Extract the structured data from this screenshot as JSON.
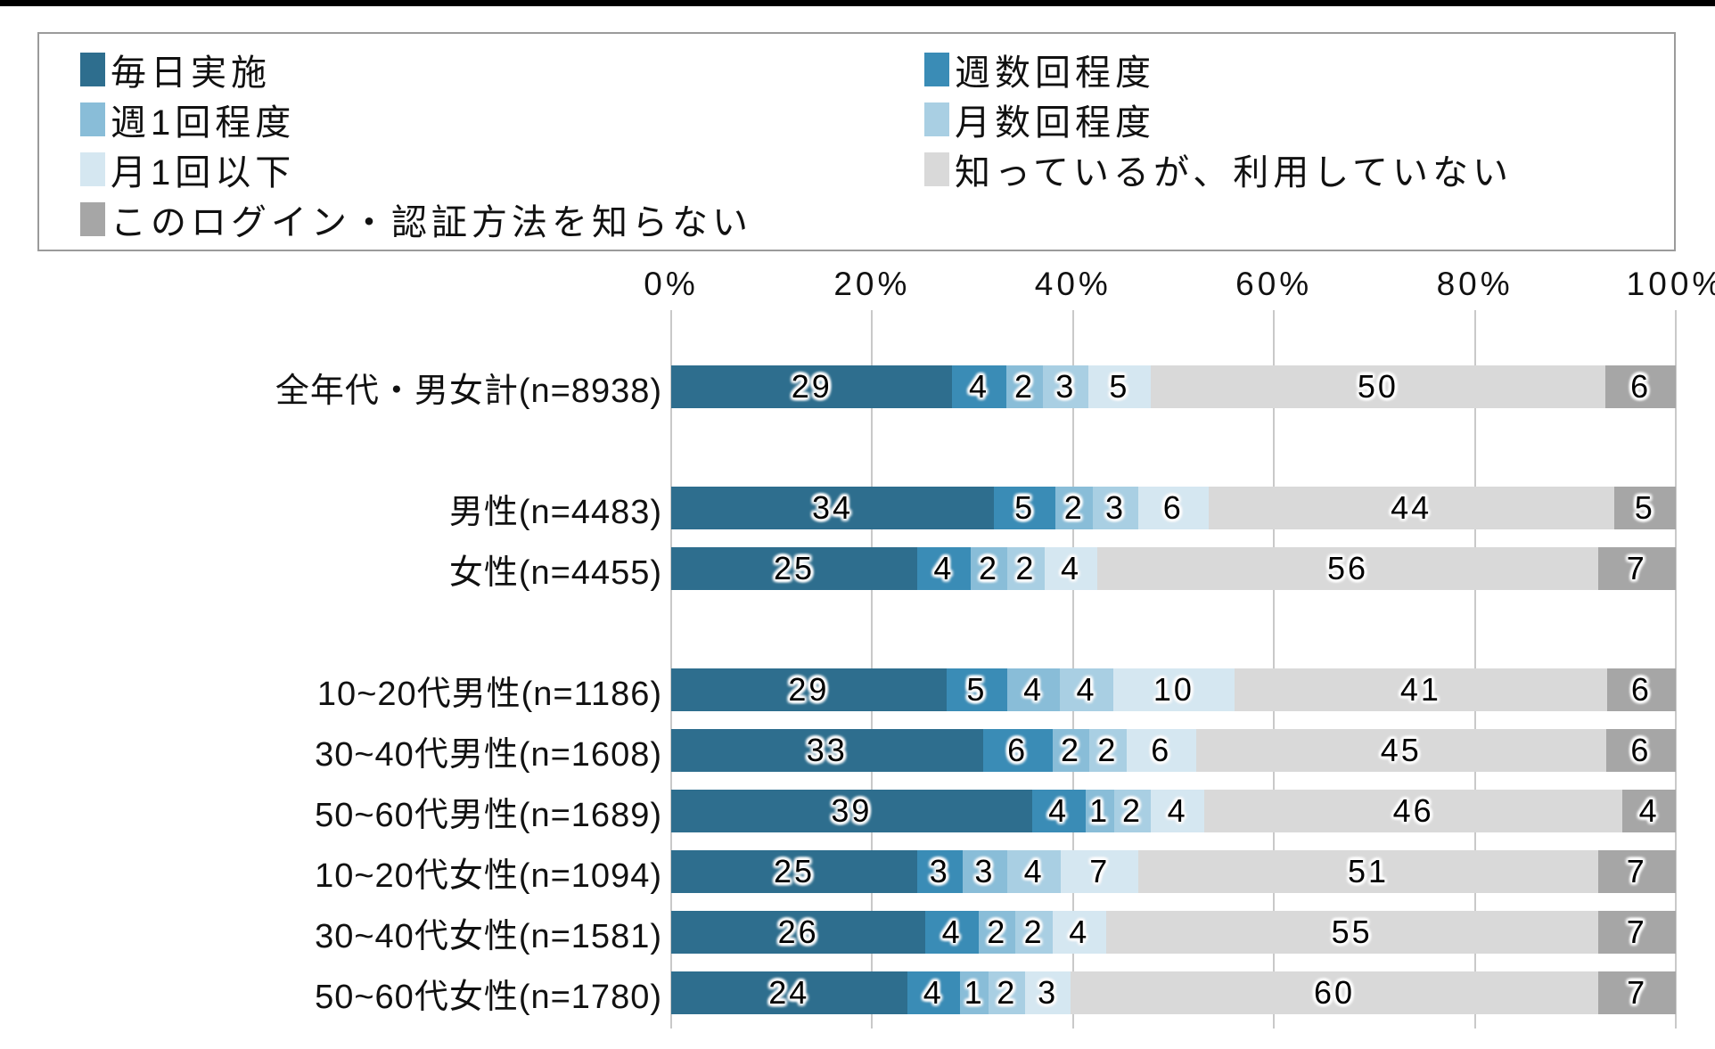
{
  "legend": {
    "columns": [
      [
        0,
        2,
        4,
        6
      ],
      [
        1,
        3,
        5
      ]
    ]
  },
  "chart_data": {
    "type": "bar",
    "stacked": true,
    "orientation": "horizontal",
    "unit": "%",
    "xlim": [
      0,
      100
    ],
    "grid": true,
    "legend_position": "top",
    "axis_ticks": [
      "0%",
      "20%",
      "40%",
      "60%",
      "80%",
      "100%"
    ],
    "categories": [
      "全年代・男女計(n=8938)",
      "男性(n=4483)",
      "女性(n=4455)",
      "10~20代男性(n=1186)",
      "30~40代男性(n=1608)",
      "50~60代男性(n=1689)",
      "10~20代女性(n=1094)",
      "30~40代女性(n=1581)",
      "50~60代女性(n=1780)"
    ],
    "group_breaks_after": [
      0,
      2
    ],
    "series": [
      {
        "name": "毎日実施",
        "color": "#2e6e8e",
        "values": [
          29,
          34,
          25,
          29,
          33,
          39,
          25,
          26,
          24
        ]
      },
      {
        "name": "週数回程度",
        "color": "#3a8cb6",
        "values": [
          4,
          5,
          4,
          5,
          6,
          4,
          3,
          4,
          4
        ]
      },
      {
        "name": "週1回程度",
        "color": "#89bdd8",
        "values": [
          2,
          2,
          2,
          4,
          2,
          1,
          3,
          2,
          1
        ]
      },
      {
        "name": "月数回程度",
        "color": "#a9cfe3",
        "values": [
          3,
          3,
          2,
          4,
          2,
          2,
          4,
          2,
          2
        ]
      },
      {
        "name": "月1回以下",
        "color": "#d5e7f1",
        "values": [
          5,
          6,
          4,
          10,
          6,
          4,
          7,
          4,
          3
        ]
      },
      {
        "name": "知っているが、利用していない",
        "color": "#d9d9d9",
        "values": [
          50,
          44,
          56,
          41,
          45,
          46,
          51,
          55,
          60
        ]
      },
      {
        "name": "このログイン・認証方法を知らない",
        "color": "#a6a6a6",
        "values": [
          6,
          5,
          7,
          6,
          6,
          4,
          7,
          7,
          7
        ]
      }
    ]
  }
}
